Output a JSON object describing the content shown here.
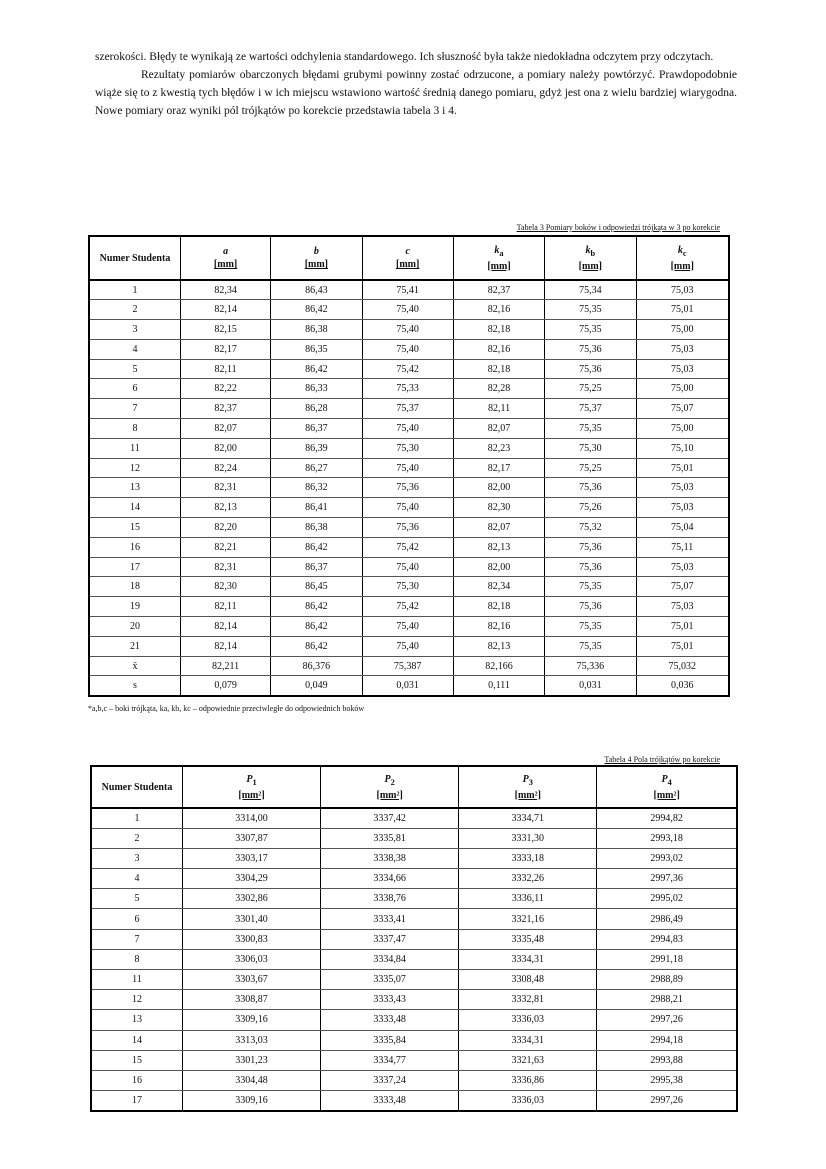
{
  "text": {
    "paragraphs": [
      "szerokości. Błędy te wynikają ze wartości odchylenia standardowego. Ich słuszność była także niedokładna odczytem przy odczytach.",
      "Rezultaty pomiarów obarczonych błędami grubymi powinny zostać odrzucone, a pomiary należy powtórzyć. Prawdopodobnie wiąże się to z kwestią tych błędów i w ich miejscu wstawiono wartość średnią danego pomiaru, gdyż jest ona z wielu bardziej wiarygodna. Nowe pomiary oraz wyniki pól trójkątów po korekcie przedstawia tabela 3 i 4."
    ]
  },
  "table1": {
    "caption": "Tabela 3 Pomiary boków i odpowiedzi trójkąta w 3 po korekcie",
    "headers": [
      {
        "symbol": "Numer Studenta"
      },
      {
        "symbol": "a",
        "unit": "[mm]"
      },
      {
        "symbol": "b",
        "unit": "[mm]"
      },
      {
        "symbol": "c",
        "unit": "[mm]"
      },
      {
        "symbol": "k",
        "sub": "a",
        "unit": "[mm]"
      },
      {
        "symbol": "k",
        "sub": "b",
        "unit": "[mm]"
      },
      {
        "symbol": "k",
        "sub": "c",
        "unit": "[mm]"
      }
    ],
    "rows": [
      [
        "1",
        "82,34",
        "86,43",
        "75,41",
        "82,37",
        "75,34",
        "75,03"
      ],
      [
        "2",
        "82,14",
        "86,42",
        "75,40",
        "82,16",
        "75,35",
        "75,01"
      ],
      [
        "3",
        "82,15",
        "86,38",
        "75,40",
        "82,18",
        "75,35",
        "75,00"
      ],
      [
        "4",
        "82,17",
        "86,35",
        "75,40",
        "82,16",
        "75,36",
        "75,03"
      ],
      [
        "5",
        "82,11",
        "86,42",
        "75,42",
        "82,18",
        "75,36",
        "75,03"
      ],
      [
        "6",
        "82,22",
        "86,33",
        "75,33",
        "82,28",
        "75,25",
        "75,00"
      ],
      [
        "7",
        "82,37",
        "86,28",
        "75,37",
        "82,11",
        "75,37",
        "75,07"
      ],
      [
        "8",
        "82,07",
        "86,37",
        "75,40",
        "82,07",
        "75,35",
        "75,00"
      ],
      [
        "11",
        "82,00",
        "86,39",
        "75,30",
        "82,23",
        "75,30",
        "75,10"
      ],
      [
        "12",
        "82,24",
        "86,27",
        "75,40",
        "82,17",
        "75,25",
        "75,01"
      ],
      [
        "13",
        "82,31",
        "86,32",
        "75,36",
        "82,00",
        "75,36",
        "75,03"
      ],
      [
        "14",
        "82,13",
        "86,41",
        "75,40",
        "82,30",
        "75,26",
        "75,03"
      ],
      [
        "15",
        "82,20",
        "86,38",
        "75,36",
        "82,07",
        "75,32",
        "75,04"
      ],
      [
        "16",
        "82,21",
        "86,42",
        "75,42",
        "82,13",
        "75,36",
        "75,11"
      ],
      [
        "17",
        "82,31",
        "86,37",
        "75,40",
        "82,00",
        "75,36",
        "75,03"
      ],
      [
        "18",
        "82,30",
        "86,45",
        "75,30",
        "82,34",
        "75,35",
        "75,07"
      ],
      [
        "19",
        "82,11",
        "86,42",
        "75,42",
        "82,18",
        "75,36",
        "75,03"
      ],
      [
        "20",
        "82,14",
        "86,42",
        "75,40",
        "82,16",
        "75,35",
        "75,01"
      ],
      [
        "21",
        "82,14",
        "86,42",
        "75,40",
        "82,13",
        "75,35",
        "75,01"
      ],
      [
        "x̄",
        "82,211",
        "86,376",
        "75,387",
        "82,166",
        "75,336",
        "75,032"
      ],
      [
        "s",
        "0,079",
        "0,049",
        "0,031",
        "0,111",
        "0,031",
        "0,036"
      ]
    ],
    "footnote": "*a,b,c – boki trójkąta, ka, kb, kc – odpowiednie przeciwległe do odpowiednich boków"
  },
  "table2": {
    "caption": "Tabela 4 Pola trójkątów po korekcie",
    "headers": [
      {
        "symbol": "Numer Studenta"
      },
      {
        "symbol": "P",
        "sub": "1",
        "unit": "[mm²]"
      },
      {
        "symbol": "P",
        "sub": "2",
        "unit": "[mm²]"
      },
      {
        "symbol": "P",
        "sub": "3",
        "unit": "[mm²]"
      },
      {
        "symbol": "P",
        "sub": "4",
        "unit": "[mm²]"
      }
    ],
    "rows": [
      [
        "1",
        "3314,00",
        "3337,42",
        "3334,71",
        "2994,82"
      ],
      [
        "2",
        "3307,87",
        "3335,81",
        "3331,30",
        "2993,18"
      ],
      [
        "3",
        "3303,17",
        "3338,38",
        "3333,18",
        "2993,02"
      ],
      [
        "4",
        "3304,29",
        "3334,66",
        "3332,26",
        "2997,36"
      ],
      [
        "5",
        "3302,86",
        "3338,76",
        "3336,11",
        "2995,02"
      ],
      [
        "6",
        "3301,40",
        "3333,41",
        "3321,16",
        "2986,49"
      ],
      [
        "7",
        "3300,83",
        "3337,47",
        "3335,48",
        "2994,83"
      ],
      [
        "8",
        "3306,03",
        "3334,84",
        "3334,31",
        "2991,18"
      ],
      [
        "11",
        "3303,67",
        "3335,07",
        "3308,48",
        "2988,89"
      ],
      [
        "12",
        "3308,87",
        "3333,43",
        "3332,81",
        "2988,21"
      ],
      [
        "13",
        "3309,16",
        "3333,48",
        "3336,03",
        "2997,26"
      ],
      [
        "14",
        "3313,03",
        "3335,84",
        "3334,31",
        "2994,18"
      ],
      [
        "15",
        "3301,23",
        "3334,77",
        "3321,63",
        "2993,88"
      ],
      [
        "16",
        "3304,48",
        "3337,24",
        "3336,86",
        "2995,38"
      ],
      [
        "17",
        "3309,16",
        "3333,48",
        "3336,03",
        "2997,26"
      ]
    ]
  }
}
